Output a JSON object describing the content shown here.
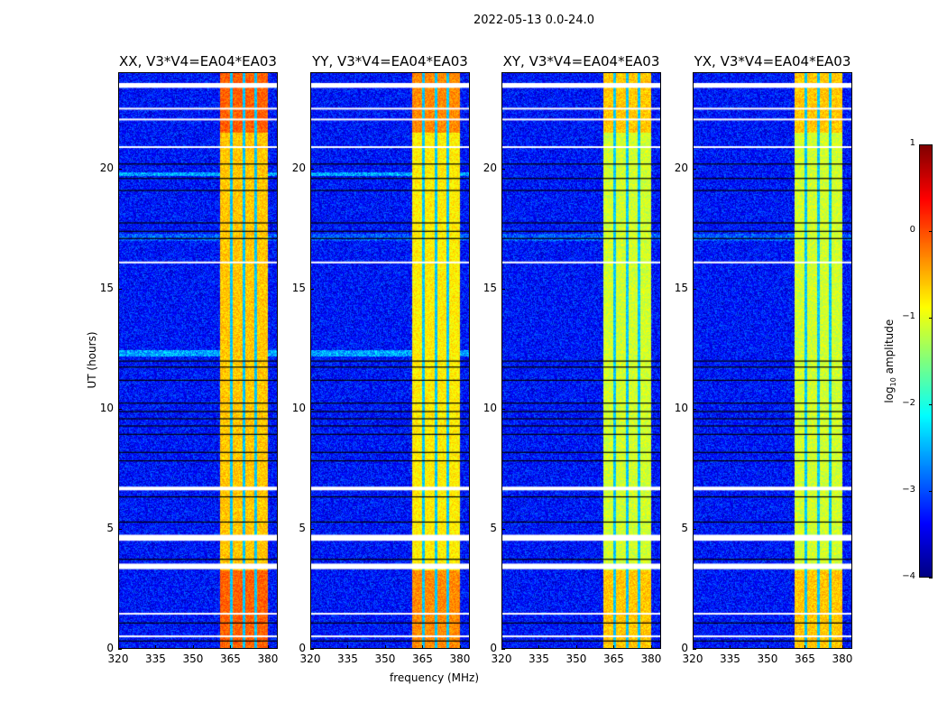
{
  "chart_data": {
    "type": "heatmap",
    "suptitle": "2022-05-13 0.0-24.0",
    "xlabel": "frequency (MHz)",
    "ylabel": "UT (hours)",
    "xlim": [
      320,
      384
    ],
    "ylim": [
      0,
      24
    ],
    "xticks": [
      "320",
      "335",
      "350",
      "365",
      "380"
    ],
    "xtick_values": [
      320,
      335,
      350,
      365,
      380
    ],
    "yticks": [
      "0",
      "5",
      "10",
      "15",
      "20"
    ],
    "ytick_values": [
      0,
      5,
      10,
      15,
      20
    ],
    "panels": [
      {
        "title": "XX, V3*V4=EA04*EA03",
        "band_level": -0.6
      },
      {
        "title": "YY, V3*V4=EA04*EA03",
        "band_level": -0.8
      },
      {
        "title": "XY, V3*V4=EA04*EA03",
        "band_level": -1.1
      },
      {
        "title": "YX, V3*V4=EA04*EA03",
        "band_level": -1.1
      }
    ],
    "background_level": -3.3,
    "active_band_mhz": [
      360.5,
      380
    ],
    "subband_gaps_mhz": [
      365.2,
      370.2,
      375.0
    ],
    "flagged_hours_white": [
      [
        23.35,
        23.55
      ],
      [
        22.45,
        22.52
      ],
      [
        22.0,
        22.07
      ],
      [
        20.85,
        20.92
      ],
      [
        16.05,
        16.12
      ],
      [
        6.6,
        6.75
      ],
      [
        4.5,
        4.75
      ],
      [
        3.32,
        3.55
      ],
      [
        1.43,
        1.5
      ],
      [
        0.5,
        0.56
      ]
    ],
    "flagged_hours_black": [
      20.2,
      19.6,
      19.1,
      17.75,
      17.4,
      17.1,
      12.0,
      11.75,
      11.2,
      10.25,
      9.9,
      9.6,
      9.3,
      8.95,
      8.2,
      7.85,
      6.35,
      5.3,
      3.75,
      1.1,
      0.35
    ],
    "colorbar": {
      "label_main": "log",
      "label_sub": "10",
      "label_rest": " amplitude",
      "range": [
        -4,
        1
      ],
      "ticks": [
        "1",
        "0",
        "−1",
        "−2",
        "−3",
        "−4"
      ],
      "tick_values": [
        1,
        0,
        -1,
        -2,
        -3,
        -4
      ],
      "colormap": "jet"
    }
  }
}
